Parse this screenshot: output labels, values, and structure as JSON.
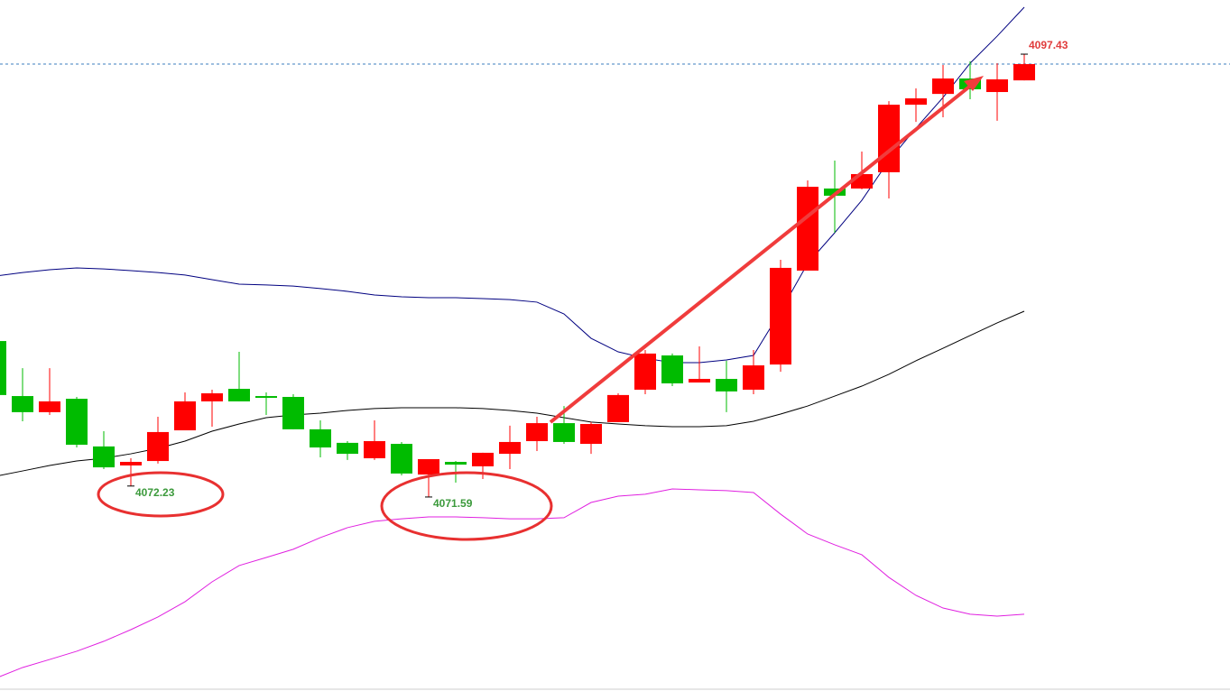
{
  "chart_data": {
    "type": "candlestick",
    "categories": [
      null,
      null,
      null,
      null,
      null,
      null,
      null,
      null,
      null,
      null,
      null,
      null,
      null,
      null,
      null,
      null,
      null,
      null,
      null,
      null,
      null,
      null,
      null,
      null,
      null,
      null,
      null,
      null,
      null,
      null,
      null,
      null,
      null,
      null,
      null,
      null,
      null,
      null,
      null
    ],
    "open": [
      4080.69,
      4077.48,
      4076.54,
      4077.32,
      4074.54,
      4073.43,
      4073.69,
      4075.48,
      4077.17,
      4077.9,
      4077.48,
      4077.43,
      4075.54,
      4074.75,
      4073.85,
      4074.69,
      4072.9,
      4073.64,
      4073.38,
      4074.11,
      4074.85,
      4075.9,
      4074.69,
      4075.96,
      4077.85,
      4079.85,
      4078.27,
      4078.48,
      4077.85,
      4079.32,
      4084.8,
      4089.59,
      4089.59,
      4090.54,
      4094.48,
      4095.11,
      4096.01,
      4095.22,
      4095.9
    ],
    "high": [
      4080.85,
      4079.11,
      4079.11,
      4077.43,
      4075.43,
      4073.85,
      4076.27,
      4077.69,
      4077.85,
      4080.06,
      4077.69,
      4077.59,
      4076.06,
      4074.85,
      4076.06,
      4074.8,
      4073.8,
      4073.69,
      4074.17,
      4075.75,
      4076.27,
      4076.9,
      4075.96,
      4077.64,
      4080.17,
      4079.96,
      4080.38,
      4079.54,
      4080.17,
      4085.43,
      4090.06,
      4091.22,
      4091.75,
      4094.69,
      4095.43,
      4096.8,
      4097.01,
      4096.9,
      4097.43
    ],
    "low": [
      4077.43,
      4076.01,
      4076.38,
      4074.48,
      4073.22,
      4072.23,
      4073.54,
      4075.48,
      4075.69,
      4077.17,
      4076.38,
      4075.54,
      4073.9,
      4073.75,
      4073.75,
      4072.85,
      4071.59,
      4072.43,
      4072.64,
      4073.22,
      4074.27,
      4074.69,
      4074.11,
      4075.96,
      4077.59,
      4078.06,
      4078.27,
      4076.54,
      4077.59,
      4078.9,
      4084.8,
      4087.01,
      4089.54,
      4089.01,
      4093.48,
      4093.75,
      4094.8,
      4093.54,
      4095.9
    ],
    "close": [
      4077.54,
      4076.54,
      4077.17,
      4074.64,
      4073.32,
      4073.64,
      4075.38,
      4077.17,
      4077.64,
      4077.17,
      4077.38,
      4075.54,
      4074.48,
      4074.11,
      4074.85,
      4072.96,
      4073.8,
      4073.48,
      4074.17,
      4074.8,
      4075.9,
      4074.8,
      4075.85,
      4077.54,
      4079.96,
      4078.22,
      4078.48,
      4077.75,
      4079.27,
      4084.96,
      4089.69,
      4089.17,
      4090.43,
      4094.48,
      4094.85,
      4096.01,
      4095.38,
      4095.96,
      4096.85
    ],
    "up_color": "#ff0000",
    "down_color": "#00bb00",
    "overlays": [
      {
        "color": "#000080",
        "values": [
          4084.48,
          4084.69,
          4084.85,
          4084.96,
          4084.9,
          4084.8,
          4084.69,
          4084.54,
          4084.27,
          4084.01,
          4083.96,
          4083.9,
          4083.75,
          4083.59,
          4083.38,
          4083.27,
          4083.22,
          4083.22,
          4083.17,
          4083.11,
          4082.96,
          4082.27,
          4080.85,
          4080.06,
          4079.69,
          4079.43,
          4079.43,
          4079.59,
          4079.85,
          4082.43,
          4085.22,
          4087.01,
          4088.9,
          4091.22,
          4093.11,
          4094.9,
          4096.9,
          4098.48,
          4100.17
        ]
      },
      {
        "color": "#000000",
        "values": [
          4072.8,
          4073.11,
          4073.43,
          4073.69,
          4073.85,
          4074.11,
          4074.43,
          4074.85,
          4075.43,
          4075.85,
          4076.22,
          4076.38,
          4076.48,
          4076.64,
          4076.75,
          4076.8,
          4076.8,
          4076.8,
          4076.75,
          4076.64,
          4076.48,
          4076.22,
          4075.96,
          4075.85,
          4075.75,
          4075.69,
          4075.69,
          4075.75,
          4076.01,
          4076.43,
          4076.9,
          4077.48,
          4078.06,
          4078.75,
          4079.54,
          4080.27,
          4081.01,
          4081.75,
          4082.43
        ]
      },
      {
        "color": "#e020e0",
        "values": [
          4061.01,
          4061.64,
          4062.11,
          4062.59,
          4063.17,
          4063.85,
          4064.59,
          4065.48,
          4066.64,
          4067.59,
          4068.06,
          4068.54,
          4069.22,
          4069.8,
          4070.17,
          4070.32,
          4070.43,
          4070.43,
          4070.38,
          4070.32,
          4070.32,
          4070.38,
          4071.27,
          4071.64,
          4071.75,
          4072.06,
          4072.01,
          4071.96,
          4071.85,
          4070.59,
          4069.43,
          4068.8,
          4068.22,
          4066.9,
          4065.85,
          4065.11,
          4064.75,
          4064.64,
          4064.75
        ]
      }
    ],
    "ylim": [
      4060.27,
      4100.59
    ]
  }
}
